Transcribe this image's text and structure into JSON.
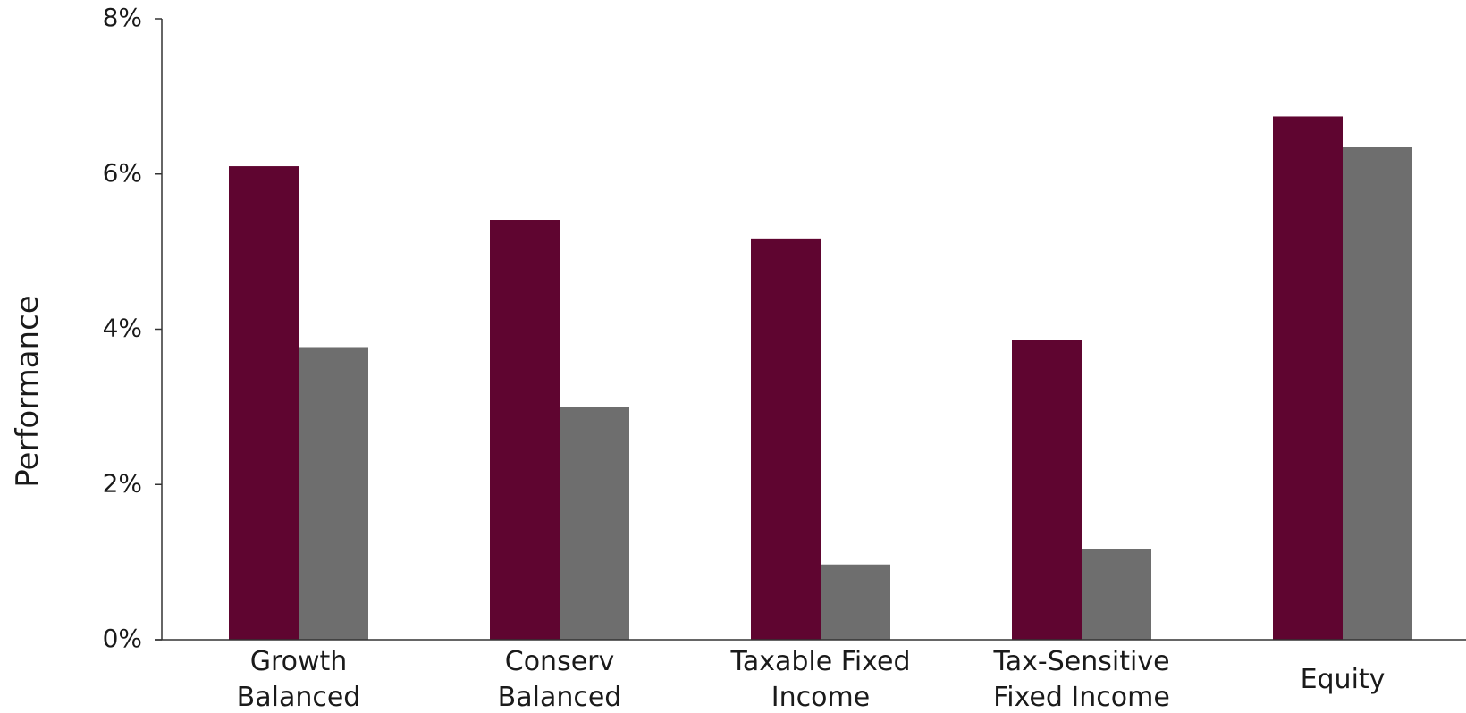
{
  "chart_data": {
    "type": "bar",
    "title": "",
    "xlabel": "",
    "ylabel": "Performance",
    "ylim": [
      0,
      8
    ],
    "yticks": [
      {
        "value": 0,
        "label": "0%"
      },
      {
        "value": 2,
        "label": "2%"
      },
      {
        "value": 4,
        "label": "4%"
      },
      {
        "value": 6,
        "label": "6%"
      },
      {
        "value": 8,
        "label": "8%"
      }
    ],
    "grid": false,
    "legend": "none",
    "categories": [
      [
        "Growth",
        "Balanced"
      ],
      [
        "Conserv",
        "Balanced"
      ],
      [
        "Taxable Fixed",
        "Income"
      ],
      [
        "Tax-Sensitive",
        "Fixed Income"
      ],
      [
        "Equity"
      ]
    ],
    "series": [
      {
        "color": "#5f0530",
        "values": [
          6.1,
          5.41,
          5.17,
          3.86,
          6.74
        ]
      },
      {
        "color": "#6e6e6e",
        "values": [
          3.77,
          3.0,
          0.97,
          1.17,
          6.35
        ]
      }
    ]
  }
}
